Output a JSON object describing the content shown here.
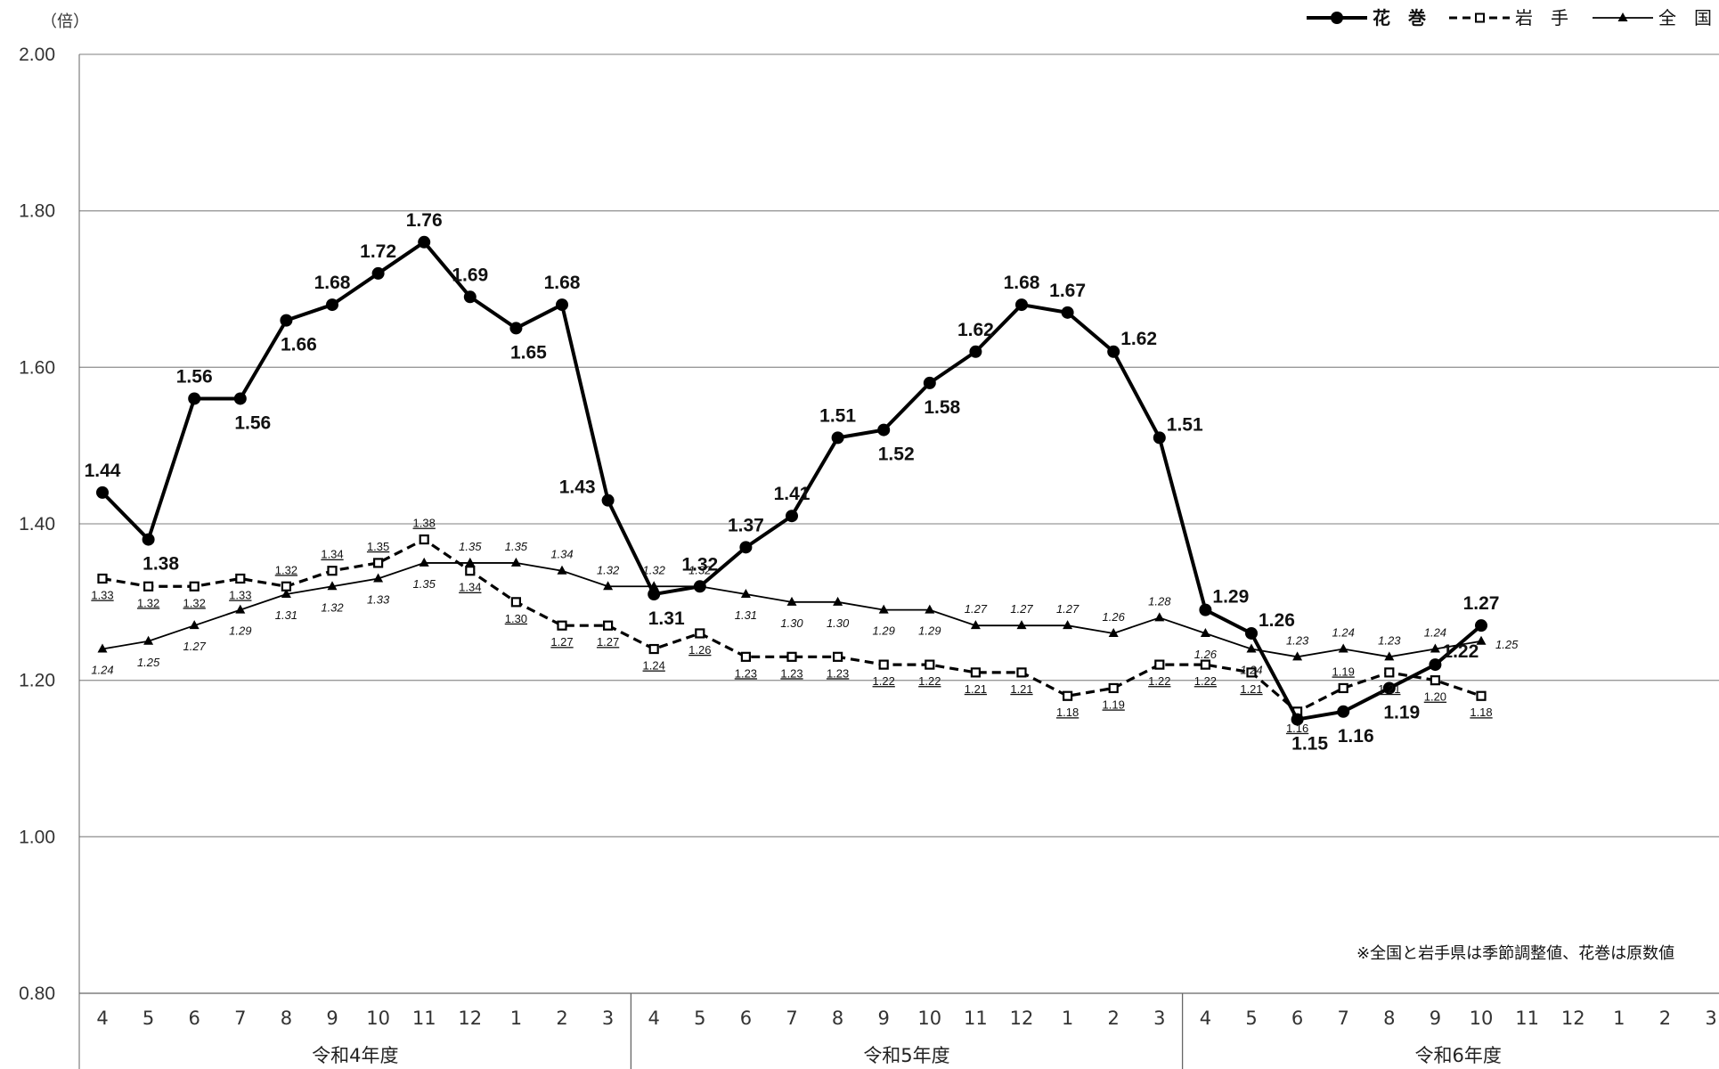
{
  "chart_data": {
    "type": "line",
    "y_unit": "（倍）",
    "note": "※全国と岩手県は季節調整値、花巻は原数値",
    "ylim": [
      0.8,
      2.0
    ],
    "y_ticks": [
      "2.00",
      "1.80",
      "1.60",
      "1.40",
      "1.20",
      "1.00",
      "0.80"
    ],
    "months": [
      "4",
      "5",
      "6",
      "7",
      "8",
      "9",
      "10",
      "11",
      "12",
      "1",
      "2",
      "3",
      "4",
      "5",
      "6",
      "7",
      "8",
      "9",
      "10",
      "11",
      "12",
      "1",
      "2",
      "3",
      "4",
      "5",
      "6",
      "7",
      "8",
      "9",
      "10",
      "11",
      "12",
      "1",
      "2",
      "3"
    ],
    "fiscal_years": [
      "令和4年度",
      "令和5年度",
      "令和6年度"
    ],
    "series": [
      {
        "name": "花　巻",
        "style": "bold-solid-circle",
        "color": "#000000",
        "values": [
          1.44,
          1.38,
          1.56,
          1.56,
          1.66,
          1.68,
          1.72,
          1.76,
          1.69,
          1.65,
          1.68,
          1.43,
          1.31,
          1.32,
          1.37,
          1.41,
          1.51,
          1.52,
          1.58,
          1.62,
          1.68,
          1.67,
          1.62,
          1.51,
          1.29,
          1.26,
          1.15,
          1.16,
          1.19,
          1.22,
          1.27
        ],
        "labels": [
          "1.44",
          "1.38",
          "1.56",
          "1.56",
          "1.66",
          "1.68",
          "1.72",
          "1.76",
          "1.69",
          "1.65",
          "1.68",
          "1.43",
          "1.31",
          "1.32",
          "1.37",
          "1.41",
          "1.51",
          "1.52",
          "1.58",
          "1.62",
          "1.68",
          "1.67",
          "1.62",
          "1.51",
          "1.29",
          "1.26",
          "1.15",
          "1.16",
          "1.19",
          "1.22",
          "1.27"
        ]
      },
      {
        "name": "岩　手",
        "style": "dashed-square",
        "color": "#000000",
        "values": [
          1.33,
          1.32,
          1.32,
          1.33,
          1.32,
          1.34,
          1.35,
          1.38,
          1.34,
          1.3,
          1.27,
          1.27,
          1.24,
          1.26,
          1.23,
          1.23,
          1.23,
          1.22,
          1.22,
          1.21,
          1.21,
          1.18,
          1.19,
          1.22,
          1.22,
          1.21,
          1.16,
          1.19,
          1.21,
          1.2,
          1.18
        ],
        "labels": [
          "1.33",
          "1.32",
          "1.32",
          "1.33",
          "1.32",
          "1.34",
          "1.35",
          "1.38",
          "1.34",
          "1.30",
          "1.27",
          "1.27",
          "1.24",
          "1.26",
          "1.23",
          "1.23",
          "1.23",
          "1.22",
          "1.22",
          "1.21",
          "1.21",
          "1.18",
          "1.19",
          "1.22",
          "1.22",
          "1.21",
          "1.16",
          "1.19",
          "1.21",
          "1.20",
          "1.18"
        ]
      },
      {
        "name": "全　国",
        "style": "thin-solid-triangle",
        "color": "#000000",
        "values": [
          1.24,
          1.25,
          1.27,
          1.29,
          1.31,
          1.32,
          1.33,
          1.35,
          1.35,
          1.35,
          1.34,
          1.32,
          1.32,
          1.32,
          1.31,
          1.3,
          1.3,
          1.29,
          1.29,
          1.27,
          1.27,
          1.27,
          1.26,
          1.28,
          1.26,
          1.24,
          1.23,
          1.24,
          1.23,
          1.24,
          1.25
        ],
        "labels": [
          "1.24",
          "1.25",
          "1.27",
          "1.29",
          "1.31",
          "1.32",
          "1.33",
          "1.35",
          "1.35",
          "1.35",
          "1.34",
          "1.32",
          "1.32",
          "1.32",
          "1.31",
          "1.30",
          "1.30",
          "1.29",
          "1.29",
          "1.27",
          "1.27",
          "1.27",
          "1.26",
          "1.28",
          "1.26",
          "1.24",
          "1.23",
          "1.24",
          "1.23",
          "1.24",
          "1.25"
        ]
      }
    ],
    "legend_position": "top-right",
    "grid": true
  }
}
